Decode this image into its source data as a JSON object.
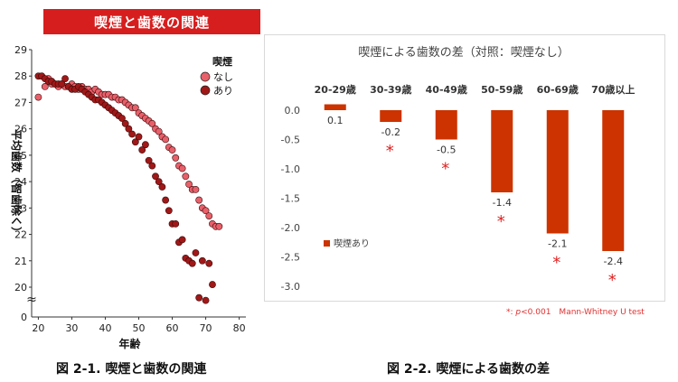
{
  "chart_data": [
    {
      "type": "scatter",
      "title": "喫煙と歯数の関連",
      "xlabel": "年齢",
      "ylabel": "平均歯数（智歯除く）",
      "xlim": [
        18,
        82
      ],
      "ylim": [
        20,
        29
      ],
      "x_ticks": [
        20,
        30,
        40,
        50,
        60,
        70,
        80
      ],
      "y_ticks": [
        20,
        21,
        22,
        23,
        24,
        25,
        26,
        27,
        28,
        29
      ],
      "y_break_label": "0",
      "y_break_symbol": "≈",
      "legend_title": "喫煙",
      "legend_position": "top-right",
      "series": [
        {
          "name": "なし",
          "color": "#e8606a",
          "points": [
            [
              20,
              27.2
            ],
            [
              21,
              28.0
            ],
            [
              22,
              27.6
            ],
            [
              23,
              27.9
            ],
            [
              24,
              27.7
            ],
            [
              25,
              27.7
            ],
            [
              26,
              27.6
            ],
            [
              27,
              27.7
            ],
            [
              28,
              27.6
            ],
            [
              29,
              27.6
            ],
            [
              30,
              27.7
            ],
            [
              31,
              27.6
            ],
            [
              32,
              27.5
            ],
            [
              33,
              27.6
            ],
            [
              34,
              27.5
            ],
            [
              35,
              27.5
            ],
            [
              36,
              27.4
            ],
            [
              37,
              27.5
            ],
            [
              38,
              27.4
            ],
            [
              39,
              27.3
            ],
            [
              40,
              27.3
            ],
            [
              41,
              27.3
            ],
            [
              42,
              27.2
            ],
            [
              43,
              27.2
            ],
            [
              44,
              27.1
            ],
            [
              45,
              27.1
            ],
            [
              46,
              27.0
            ],
            [
              47,
              26.9
            ],
            [
              48,
              26.8
            ],
            [
              49,
              26.8
            ],
            [
              50,
              26.6
            ],
            [
              51,
              26.5
            ],
            [
              52,
              26.4
            ],
            [
              53,
              26.3
            ],
            [
              54,
              26.2
            ],
            [
              55,
              26.0
            ],
            [
              56,
              25.9
            ],
            [
              57,
              25.7
            ],
            [
              58,
              25.6
            ],
            [
              59,
              25.3
            ],
            [
              60,
              25.2
            ],
            [
              61,
              24.9
            ],
            [
              62,
              24.6
            ],
            [
              63,
              24.5
            ],
            [
              64,
              24.2
            ],
            [
              65,
              23.9
            ],
            [
              66,
              23.7
            ],
            [
              67,
              23.7
            ],
            [
              68,
              23.3
            ],
            [
              69,
              23.0
            ],
            [
              70,
              22.9
            ],
            [
              71,
              22.7
            ],
            [
              72,
              22.4
            ],
            [
              73,
              22.3
            ],
            [
              74,
              22.3
            ]
          ]
        },
        {
          "name": "あり",
          "color": "#a01818",
          "points": [
            [
              20,
              28.0
            ],
            [
              21,
              28.0
            ],
            [
              22,
              27.9
            ],
            [
              23,
              27.8
            ],
            [
              24,
              27.8
            ],
            [
              25,
              27.7
            ],
            [
              26,
              27.7
            ],
            [
              27,
              27.7
            ],
            [
              28,
              27.9
            ],
            [
              29,
              27.6
            ],
            [
              30,
              27.5
            ],
            [
              31,
              27.5
            ],
            [
              32,
              27.6
            ],
            [
              33,
              27.5
            ],
            [
              34,
              27.4
            ],
            [
              35,
              27.3
            ],
            [
              36,
              27.2
            ],
            [
              37,
              27.1
            ],
            [
              38,
              27.1
            ],
            [
              39,
              27.0
            ],
            [
              40,
              26.9
            ],
            [
              41,
              26.8
            ],
            [
              42,
              26.7
            ],
            [
              43,
              26.6
            ],
            [
              44,
              26.5
            ],
            [
              45,
              26.4
            ],
            [
              46,
              26.2
            ],
            [
              47,
              26.0
            ],
            [
              48,
              25.8
            ],
            [
              49,
              25.5
            ],
            [
              50,
              25.7
            ],
            [
              51,
              25.2
            ],
            [
              52,
              25.4
            ],
            [
              53,
              24.8
            ],
            [
              54,
              24.6
            ],
            [
              55,
              24.2
            ],
            [
              56,
              24.0
            ],
            [
              57,
              23.8
            ],
            [
              58,
              23.3
            ],
            [
              59,
              22.9
            ],
            [
              60,
              22.4
            ],
            [
              61,
              22.4
            ],
            [
              62,
              21.7
            ],
            [
              63,
              21.8
            ],
            [
              64,
              21.1
            ],
            [
              65,
              21.0
            ],
            [
              66,
              20.9
            ],
            [
              67,
              21.3
            ],
            [
              68,
              19.6
            ],
            [
              69,
              21.0
            ],
            [
              70,
              19.5
            ],
            [
              71,
              20.9
            ],
            [
              72,
              20.1
            ]
          ]
        }
      ]
    },
    {
      "type": "bar",
      "title": "喫煙による歯数の差（対照：喫煙なし）",
      "categories": [
        "20-29歳",
        "30-39歳",
        "40-49歳",
        "50-59歳",
        "60-69歳",
        "70歳以上"
      ],
      "series": [
        {
          "name": "喫煙あり",
          "color": "#cc3300",
          "values": [
            0.1,
            -0.2,
            -0.5,
            -1.4,
            -2.1,
            -2.4
          ],
          "value_labels": [
            "0.1",
            "-0.2",
            "-0.5",
            "-1.4",
            "-2.1",
            "-2.4"
          ],
          "significant": [
            false,
            true,
            true,
            true,
            true,
            true
          ]
        }
      ],
      "ylim": [
        -3.0,
        0.0
      ],
      "y_ticks": [
        "0.0",
        "-0.5",
        "-1.0",
        "-1.5",
        "-2.0",
        "-2.5",
        "-3.0"
      ],
      "legend_position": "left-middle",
      "significance_marker": "*",
      "significance_note_prefix": "*: ",
      "significance_note_p": "p",
      "significance_note_rest": "<0.001　Mann-Whitney U test"
    }
  ],
  "captions": {
    "fig1": "図 2-1. 喫煙と歯数の関連",
    "fig2": "図 2-2. 喫煙による歯数の差"
  }
}
